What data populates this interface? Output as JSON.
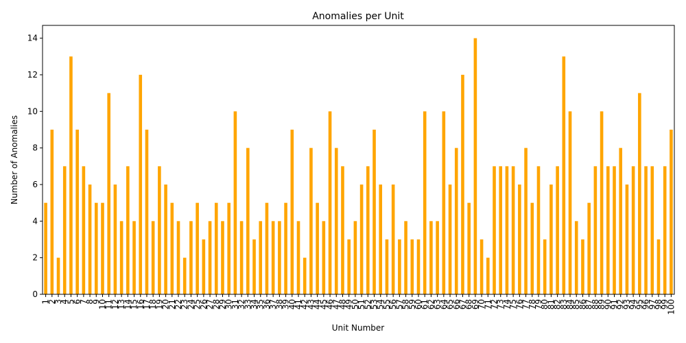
{
  "chart_data": {
    "type": "bar",
    "title": "Anomalies per Unit",
    "xlabel": "Unit Number",
    "ylabel": "Number of Anomalies",
    "ylim": [
      0,
      14.7
    ],
    "yticks": [
      0,
      2,
      4,
      6,
      8,
      10,
      12,
      14
    ],
    "grid": false,
    "bar_color": "#ffa500",
    "categories": [
      "1",
      "2",
      "3",
      "4",
      "5",
      "6",
      "7",
      "8",
      "9",
      "10",
      "11",
      "12",
      "13",
      "14",
      "15",
      "16",
      "17",
      "18",
      "19",
      "20",
      "21",
      "22",
      "23",
      "24",
      "25",
      "26",
      "27",
      "28",
      "29",
      "30",
      "31",
      "32",
      "33",
      "34",
      "35",
      "36",
      "37",
      "38",
      "39",
      "40",
      "41",
      "42",
      "43",
      "44",
      "45",
      "46",
      "47",
      "48",
      "49",
      "50",
      "51",
      "52",
      "53",
      "54",
      "55",
      "56",
      "57",
      "58",
      "59",
      "60",
      "61",
      "62",
      "63",
      "64",
      "65",
      "66",
      "67",
      "68",
      "69",
      "70",
      "71",
      "72",
      "73",
      "74",
      "75",
      "76",
      "77",
      "78",
      "79",
      "80",
      "81",
      "82",
      "83",
      "84",
      "85",
      "86",
      "87",
      "88",
      "89",
      "90",
      "91",
      "92",
      "93",
      "94",
      "95",
      "96",
      "97",
      "98",
      "99",
      "100"
    ],
    "values": [
      5,
      9,
      2,
      7,
      13,
      9,
      7,
      6,
      5,
      5,
      11,
      6,
      4,
      7,
      4,
      12,
      9,
      4,
      7,
      6,
      5,
      4,
      2,
      4,
      5,
      3,
      4,
      5,
      4,
      5,
      10,
      4,
      8,
      3,
      4,
      5,
      4,
      4,
      5,
      9,
      4,
      2,
      8,
      5,
      4,
      10,
      8,
      7,
      3,
      4,
      6,
      7,
      9,
      6,
      3,
      6,
      3,
      4,
      3,
      3,
      10,
      4,
      4,
      10,
      6,
      8,
      12,
      5,
      14,
      3,
      2,
      7,
      7,
      7,
      7,
      6,
      8,
      5,
      7,
      3,
      6,
      7,
      13,
      10,
      4,
      3,
      5,
      7,
      10,
      7,
      7,
      8,
      6,
      7,
      11,
      7,
      7,
      3,
      7,
      9
    ]
  }
}
